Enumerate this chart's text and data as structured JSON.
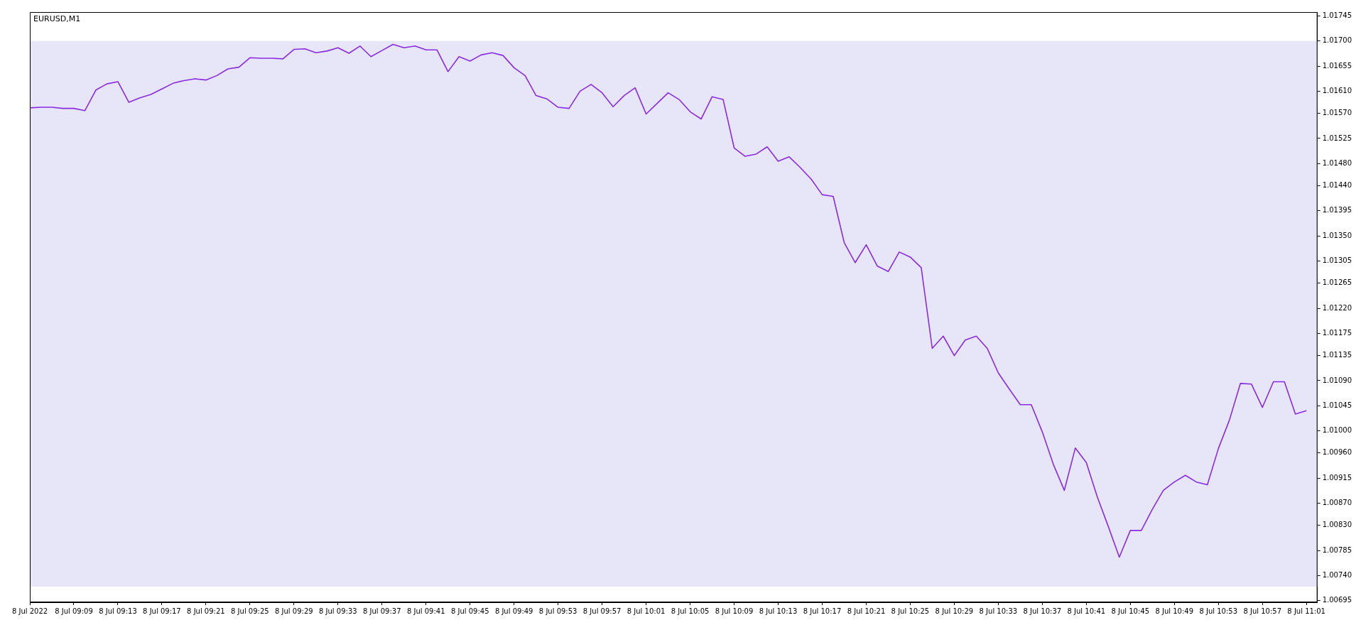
{
  "chart_data": {
    "type": "line",
    "title": "EURUSD,M1",
    "x": [
      "2022-07-08T09:05",
      "2022-07-08T09:06",
      "2022-07-08T09:07",
      "2022-07-08T09:08",
      "2022-07-08T09:09",
      "2022-07-08T09:10",
      "2022-07-08T09:11",
      "2022-07-08T09:12",
      "2022-07-08T09:13",
      "2022-07-08T09:14",
      "2022-07-08T09:15",
      "2022-07-08T09:16",
      "2022-07-08T09:17",
      "2022-07-08T09:18",
      "2022-07-08T09:19",
      "2022-07-08T09:20",
      "2022-07-08T09:21",
      "2022-07-08T09:22",
      "2022-07-08T09:23",
      "2022-07-08T09:24",
      "2022-07-08T09:25",
      "2022-07-08T09:26",
      "2022-07-08T09:27",
      "2022-07-08T09:28",
      "2022-07-08T09:29",
      "2022-07-08T09:30",
      "2022-07-08T09:31",
      "2022-07-08T09:32",
      "2022-07-08T09:33",
      "2022-07-08T09:34",
      "2022-07-08T09:35",
      "2022-07-08T09:36",
      "2022-07-08T09:37",
      "2022-07-08T09:38",
      "2022-07-08T09:39",
      "2022-07-08T09:40",
      "2022-07-08T09:41",
      "2022-07-08T09:42",
      "2022-07-08T09:43",
      "2022-07-08T09:44",
      "2022-07-08T09:45",
      "2022-07-08T09:46",
      "2022-07-08T09:47",
      "2022-07-08T09:48",
      "2022-07-08T09:49",
      "2022-07-08T09:50",
      "2022-07-08T09:51",
      "2022-07-08T09:52",
      "2022-07-08T09:53",
      "2022-07-08T09:54",
      "2022-07-08T09:55",
      "2022-07-08T09:56",
      "2022-07-08T09:57",
      "2022-07-08T09:58",
      "2022-07-08T09:59",
      "2022-07-08T10:00",
      "2022-07-08T10:01",
      "2022-07-08T10:02",
      "2022-07-08T10:03",
      "2022-07-08T10:04",
      "2022-07-08T10:05",
      "2022-07-08T10:06",
      "2022-07-08T10:07",
      "2022-07-08T10:08",
      "2022-07-08T10:09",
      "2022-07-08T10:10",
      "2022-07-08T10:11",
      "2022-07-08T10:12",
      "2022-07-08T10:13",
      "2022-07-08T10:14",
      "2022-07-08T10:15",
      "2022-07-08T10:16",
      "2022-07-08T10:17",
      "2022-07-08T10:18",
      "2022-07-08T10:19",
      "2022-07-08T10:20",
      "2022-07-08T10:21",
      "2022-07-08T10:22",
      "2022-07-08T10:23",
      "2022-07-08T10:24",
      "2022-07-08T10:25",
      "2022-07-08T10:26",
      "2022-07-08T10:27",
      "2022-07-08T10:28",
      "2022-07-08T10:29",
      "2022-07-08T10:30",
      "2022-07-08T10:31",
      "2022-07-08T10:32",
      "2022-07-08T10:33",
      "2022-07-08T10:34",
      "2022-07-08T10:35",
      "2022-07-08T10:36",
      "2022-07-08T10:37",
      "2022-07-08T10:38",
      "2022-07-08T10:39",
      "2022-07-08T10:40",
      "2022-07-08T10:41",
      "2022-07-08T10:42",
      "2022-07-08T10:43",
      "2022-07-08T10:44",
      "2022-07-08T10:45",
      "2022-07-08T10:46",
      "2022-07-08T10:47",
      "2022-07-08T10:48",
      "2022-07-08T10:49",
      "2022-07-08T10:50",
      "2022-07-08T10:51",
      "2022-07-08T10:52",
      "2022-07-08T10:53",
      "2022-07-08T10:54",
      "2022-07-08T10:55",
      "2022-07-08T10:56",
      "2022-07-08T10:57",
      "2022-07-08T10:58",
      "2022-07-08T10:59",
      "2022-07-08T11:00",
      "2022-07-08T11:01"
    ],
    "series": [
      {
        "color": "#8a2be2",
        "values": [
          1.0158,
          1.01581,
          1.01581,
          1.01579,
          1.01579,
          1.01575,
          1.01612,
          1.01623,
          1.01627,
          1.0159,
          1.01598,
          1.01604,
          1.01614,
          1.01624,
          1.01629,
          1.01632,
          1.0163,
          1.01638,
          1.0165,
          1.01653,
          1.0167,
          1.01669,
          1.01669,
          1.01668,
          1.01685,
          1.01686,
          1.01679,
          1.01682,
          1.01688,
          1.01678,
          1.01691,
          1.01672,
          1.01683,
          1.01694,
          1.01688,
          1.01691,
          1.01684,
          1.01684,
          1.01645,
          1.01672,
          1.01664,
          1.01675,
          1.01679,
          1.01674,
          1.01652,
          1.01638,
          1.01602,
          1.01596,
          1.01581,
          1.01579,
          1.0161,
          1.01622,
          1.01607,
          1.01582,
          1.01602,
          1.01616,
          1.01569,
          1.01588,
          1.01607,
          1.01595,
          1.01573,
          1.0156,
          1.016,
          1.01595,
          1.01508,
          1.01493,
          1.01497,
          1.0151,
          1.01484,
          1.01492,
          1.01473,
          1.01452,
          1.01424,
          1.01421,
          1.01338,
          1.01302,
          1.01334,
          1.01296,
          1.01286,
          1.01321,
          1.01312,
          1.01293,
          1.01148,
          1.0117,
          1.01135,
          1.01163,
          1.0117,
          1.01148,
          1.01104,
          1.01075,
          1.01047,
          1.01047,
          1.00998,
          1.0094,
          1.00893,
          1.00969,
          1.00943,
          1.00881,
          1.00828,
          1.00773,
          1.00821,
          1.00821,
          1.00859,
          1.00893,
          1.00908,
          1.0092,
          1.00908,
          1.00903,
          1.00968,
          1.01019,
          1.01085,
          1.01084,
          1.01042,
          1.01088,
          1.01088,
          1.0103,
          1.01036
        ]
      }
    ],
    "xlim": [
      "2022-07-08T09:05",
      "2022-07-08T11:02"
    ],
    "xticks": [
      {
        "value": "2022-07-08T09:05",
        "label": "8 Jul 2022"
      },
      {
        "value": "2022-07-08T09:09",
        "label": "8 Jul 09:09"
      },
      {
        "value": "2022-07-08T09:13",
        "label": "8 Jul 09:13"
      },
      {
        "value": "2022-07-08T09:17",
        "label": "8 Jul 09:17"
      },
      {
        "value": "2022-07-08T09:21",
        "label": "8 Jul 09:21"
      },
      {
        "value": "2022-07-08T09:25",
        "label": "8 Jul 09:25"
      },
      {
        "value": "2022-07-08T09:29",
        "label": "8 Jul 09:29"
      },
      {
        "value": "2022-07-08T09:33",
        "label": "8 Jul 09:33"
      },
      {
        "value": "2022-07-08T09:37",
        "label": "8 Jul 09:37"
      },
      {
        "value": "2022-07-08T09:41",
        "label": "8 Jul 09:41"
      },
      {
        "value": "2022-07-08T09:45",
        "label": "8 Jul 09:45"
      },
      {
        "value": "2022-07-08T09:49",
        "label": "8 Jul 09:49"
      },
      {
        "value": "2022-07-08T09:53",
        "label": "8 Jul 09:53"
      },
      {
        "value": "2022-07-08T09:57",
        "label": "8 Jul 09:57"
      },
      {
        "value": "2022-07-08T10:01",
        "label": "8 Jul 10:01"
      },
      {
        "value": "2022-07-08T10:05",
        "label": "8 Jul 10:05"
      },
      {
        "value": "2022-07-08T10:09",
        "label": "8 Jul 10:09"
      },
      {
        "value": "2022-07-08T10:13",
        "label": "8 Jul 10:13"
      },
      {
        "value": "2022-07-08T10:17",
        "label": "8 Jul 10:17"
      },
      {
        "value": "2022-07-08T10:21",
        "label": "8 Jul 10:21"
      },
      {
        "value": "2022-07-08T10:25",
        "label": "8 Jul 10:25"
      },
      {
        "value": "2022-07-08T10:29",
        "label": "8 Jul 10:29"
      },
      {
        "value": "2022-07-08T10:33",
        "label": "8 Jul 10:33"
      },
      {
        "value": "2022-07-08T10:37",
        "label": "8 Jul 10:37"
      },
      {
        "value": "2022-07-08T10:41",
        "label": "8 Jul 10:41"
      },
      {
        "value": "2022-07-08T10:45",
        "label": "8 Jul 10:45"
      },
      {
        "value": "2022-07-08T10:49",
        "label": "8 Jul 10:49"
      },
      {
        "value": "2022-07-08T10:53",
        "label": "8 Jul 10:53"
      },
      {
        "value": "2022-07-08T10:57",
        "label": "8 Jul 10:57"
      },
      {
        "value": "2022-07-08T11:01",
        "label": "8 Jul 11:01"
      }
    ],
    "ylim": [
      1.00692,
      1.01752
    ],
    "yticks": [
      1.01745,
      {
        "value": 1.017,
        "label": "1.01700"
      },
      1.01655,
      {
        "value": 1.0161,
        "label": "1.01610"
      },
      {
        "value": 1.0157,
        "label": "1.01570"
      },
      1.01525,
      {
        "value": 1.0148,
        "label": "1.01480"
      },
      {
        "value": 1.0144,
        "label": "1.01440"
      },
      1.01395,
      {
        "value": 1.0135,
        "label": "1.01350"
      },
      1.01305,
      1.01265,
      {
        "value": 1.0122,
        "label": "1.01220"
      },
      1.01175,
      1.01135,
      {
        "value": 1.0109,
        "label": "1.01090"
      },
      1.01045,
      {
        "value": 1.01,
        "label": "1.01000"
      },
      {
        "value": 1.0096,
        "label": "1.00960"
      },
      1.00915,
      {
        "value": 1.0087,
        "label": "1.00870"
      },
      {
        "value": 1.0083,
        "label": "1.00830"
      },
      1.00785,
      {
        "value": 1.0074,
        "label": "1.00740"
      },
      1.00695
    ],
    "bands": [
      {
        "axis": "y",
        "from": 1.0072,
        "to": 1.017,
        "color": "#e6e6f8"
      }
    ],
    "grid": false,
    "legend": false,
    "marker": "none",
    "line_style": "solid"
  }
}
